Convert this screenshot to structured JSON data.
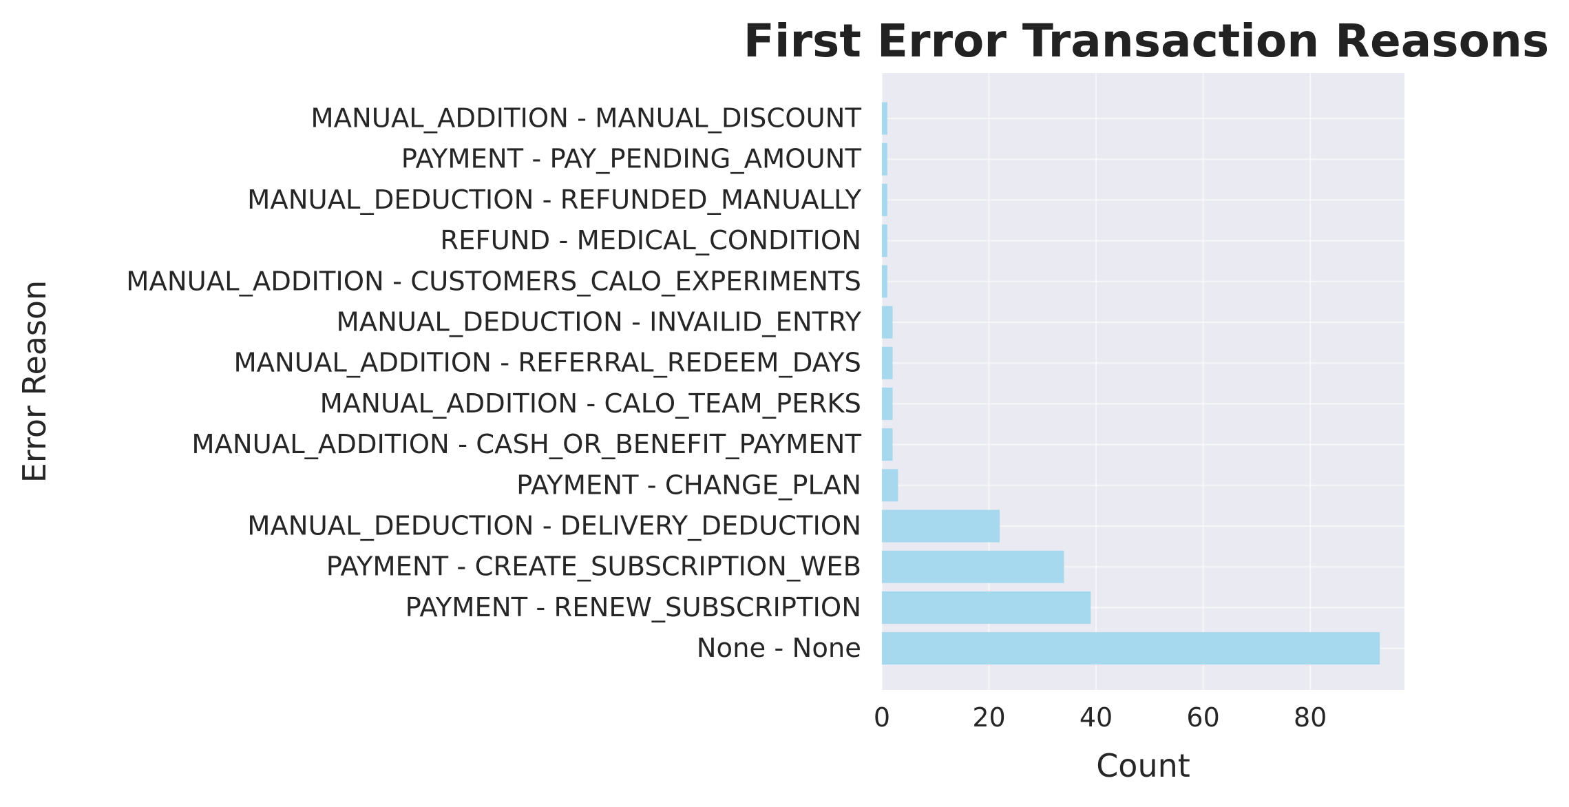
{
  "chart_data": {
    "type": "bar",
    "orientation": "horizontal",
    "title": "First Error Transaction Reasons",
    "xlabel": "Count",
    "ylabel": "Error Reason",
    "xlim": [
      0,
      97.6
    ],
    "xticks": [
      0,
      20,
      40,
      60,
      80
    ],
    "grid": true,
    "bar_color": "#a6d8ee",
    "plot_background": "#eaeaf2",
    "categories": [
      "MANUAL_ADDITION - MANUAL_DISCOUNT",
      "PAYMENT - PAY_PENDING_AMOUNT",
      "MANUAL_DEDUCTION - REFUNDED_MANUALLY",
      "REFUND - MEDICAL_CONDITION",
      "MANUAL_ADDITION - CUSTOMERS_CALO_EXPERIMENTS",
      "MANUAL_DEDUCTION - INVAILID_ENTRY",
      "MANUAL_ADDITION - REFERRAL_REDEEM_DAYS",
      "MANUAL_ADDITION - CALO_TEAM_PERKS",
      "MANUAL_ADDITION - CASH_OR_BENEFIT_PAYMENT",
      "PAYMENT - CHANGE_PLAN",
      "MANUAL_DEDUCTION - DELIVERY_DEDUCTION",
      "PAYMENT - CREATE_SUBSCRIPTION_WEB",
      "PAYMENT - RENEW_SUBSCRIPTION",
      "None - None"
    ],
    "values": [
      1,
      1,
      1,
      1,
      1,
      2,
      2,
      2,
      2,
      3,
      22,
      34,
      39,
      93
    ]
  }
}
